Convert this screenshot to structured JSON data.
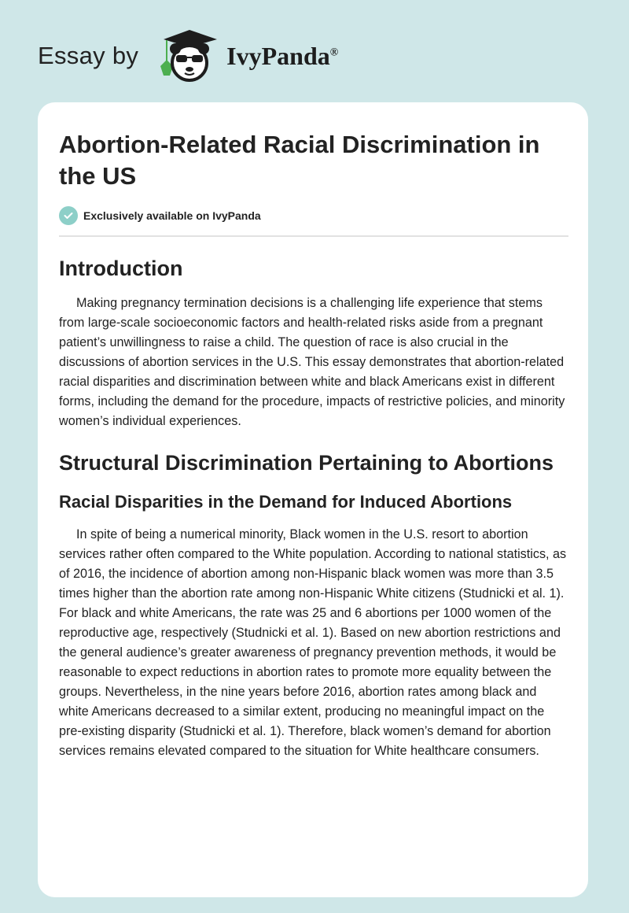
{
  "header": {
    "essay_by": "Essay by",
    "brand": "IvyPanda",
    "registered": "®",
    "logo_icon": "panda-graduate-icon"
  },
  "article": {
    "title": "Abortion-Related Racial Discrimination in the US",
    "exclusive": "Exclusively available on IvyPanda",
    "sections": [
      {
        "heading": "Introduction",
        "paragraph": "Making pregnancy termination decisions is a challenging life experience that stems from large-scale socioeconomic factors and health-related risks aside from a pregnant patient’s unwillingness to raise a child. The question of race is also crucial in the discussions of abortion services in the U.S. This essay demonstrates that abortion-related racial disparities and discrimination between white and black Americans exist in different forms, including the demand for the procedure, impacts of restrictive policies, and minority women’s individual experiences."
      },
      {
        "heading": "Structural Discrimination Pertaining to Abortions"
      },
      {
        "subheading": "Racial Disparities in the Demand for Induced Abortions",
        "paragraph": "In spite of being a numerical minority, Black women in the U.S. resort to abortion services rather often compared to the White population. According to national statistics, as of 2016, the incidence of abortion among non-Hispanic black women was more than 3.5 times higher than the abortion rate among non-Hispanic White citizens (Studnicki et al. 1). For black and white Americans, the rate was 25 and 6 abortions per 1000 women of the reproductive age, respectively (Studnicki et al. 1). Based on new abortion restrictions and the general audience’s greater awareness of pregnancy prevention methods, it would be reasonable to expect reductions in abortion rates to promote more equality between the groups. Nevertheless, in the nine years before 2016, abortion rates among black and white Americans decreased to a similar extent, producing no meaningful impact on the pre-existing disparity (Studnicki et al. 1). Therefore, black women’s demand for abortion services remains elevated compared to the situation for White healthcare consumers."
      }
    ]
  },
  "colors": {
    "background": "#cfe7e8",
    "check": "#8dcfc8",
    "ivy": "#4caf50"
  }
}
